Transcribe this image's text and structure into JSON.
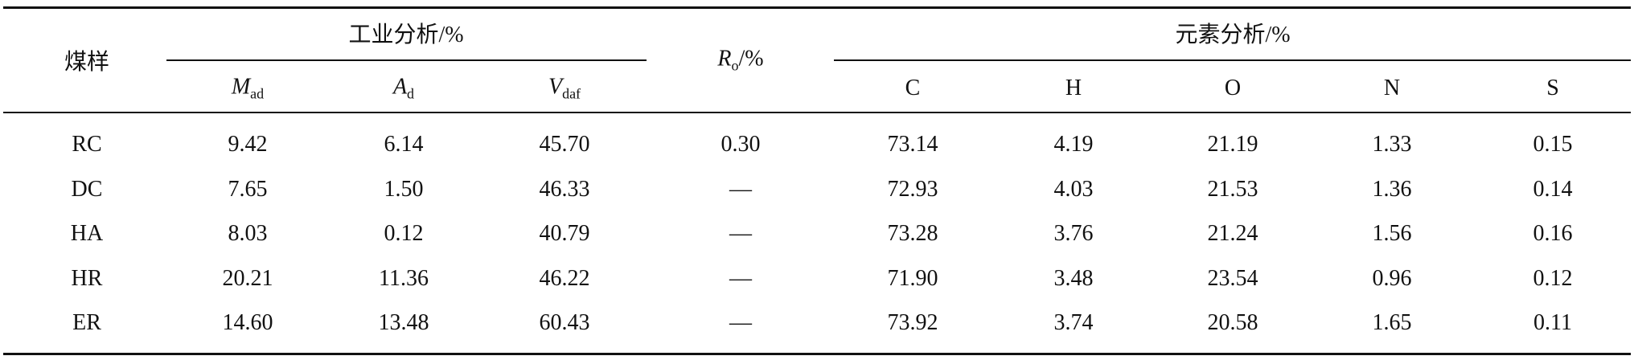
{
  "table": {
    "header": {
      "sample": "煤样",
      "proximate": {
        "title": "工业分析/%",
        "columns": [
          {
            "symbol": "M",
            "subscript": "ad"
          },
          {
            "symbol": "A",
            "subscript": "d"
          },
          {
            "symbol": "V",
            "subscript": "daf"
          }
        ]
      },
      "ro": {
        "symbol": "R",
        "subscript": "o",
        "unit": "/%"
      },
      "ultimate": {
        "title": "元素分析/%",
        "columns": [
          "C",
          "H",
          "O",
          "N",
          "S"
        ]
      }
    },
    "rows": [
      [
        "RC",
        "9.42",
        "6.14",
        "45.70",
        "0.30",
        "73.14",
        "4.19",
        "21.19",
        "1.33",
        "0.15"
      ],
      [
        "DC",
        "7.65",
        "1.50",
        "46.33",
        "—",
        "72.93",
        "4.03",
        "21.53",
        "1.36",
        "0.14"
      ],
      [
        "HA",
        "8.03",
        "0.12",
        "40.79",
        "—",
        "73.28",
        "3.76",
        "21.24",
        "1.56",
        "0.16"
      ],
      [
        "HR",
        "20.21",
        "11.36",
        "46.22",
        "—",
        "71.90",
        "3.48",
        "23.54",
        "0.96",
        "0.12"
      ],
      [
        "ER",
        "14.60",
        "13.48",
        "60.43",
        "—",
        "73.92",
        "3.74",
        "20.58",
        "1.65",
        "0.11"
      ]
    ]
  }
}
